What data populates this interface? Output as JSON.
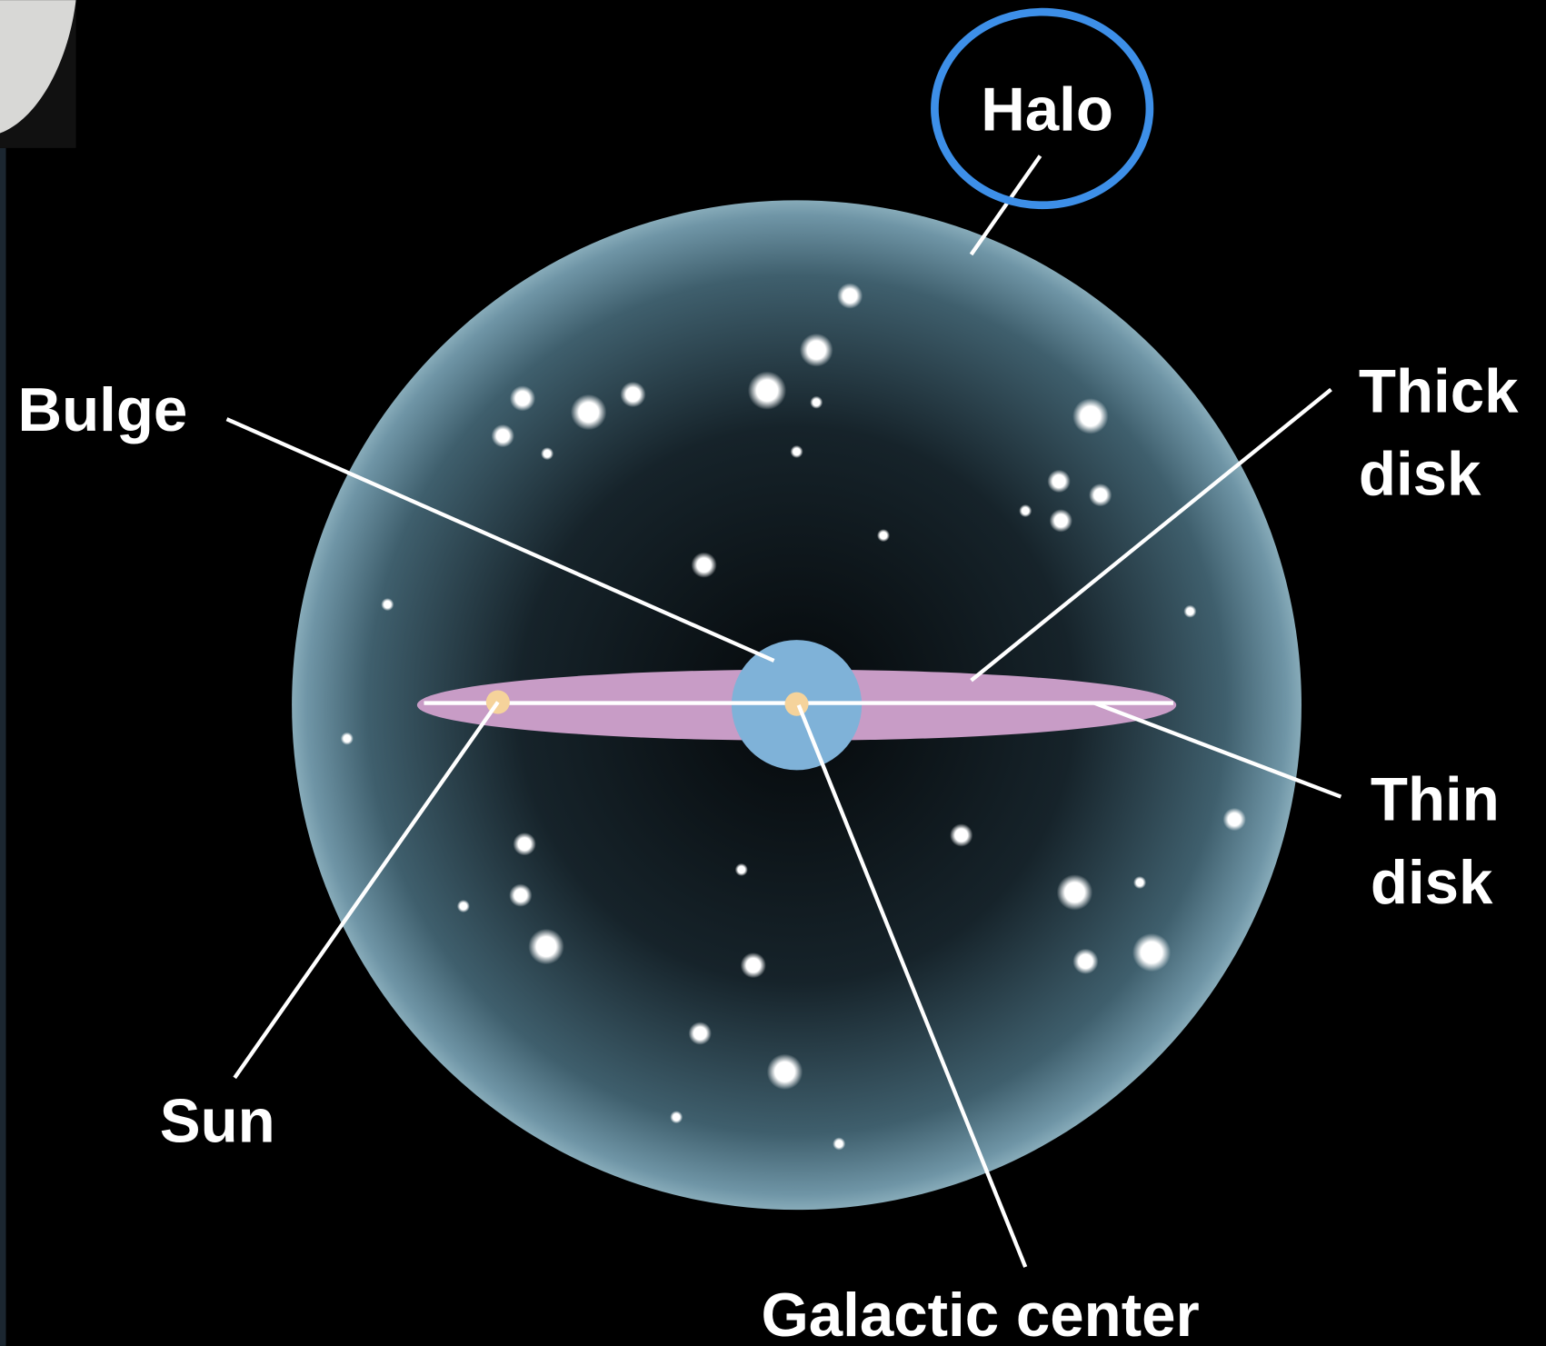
{
  "labels": [
    {
      "id": "halo",
      "lines": [
        "Halo"
      ]
    },
    {
      "id": "bulge",
      "lines": [
        "Bulge"
      ]
    },
    {
      "id": "thick-disk",
      "lines": [
        "Thick",
        "disk"
      ]
    },
    {
      "id": "thin-disk",
      "lines": [
        "Thin",
        "disk"
      ]
    },
    {
      "id": "sun",
      "lines": [
        "Sun"
      ]
    },
    {
      "id": "galactic-center",
      "lines": [
        "Galactic center"
      ]
    }
  ]
}
